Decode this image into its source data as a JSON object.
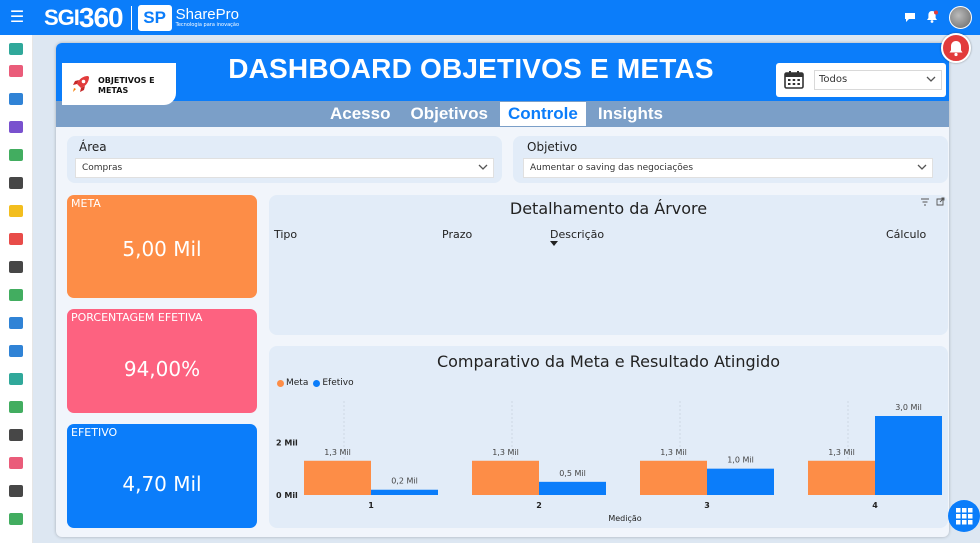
{
  "topbar": {
    "brand_prefix": "SGI",
    "brand_number": "360",
    "partner_mark": "SP",
    "partner_name": "SharePro",
    "partner_tagline": "Tecnologia para inovação",
    "icons": [
      "menu-icon",
      "chat-icon",
      "bell-icon",
      "avatar"
    ]
  },
  "sidebar": {
    "icons": [
      {
        "name": "dashboard-icon",
        "color": "#1a9e8f"
      },
      {
        "name": "calendar-icon",
        "color": "#e84a6b"
      },
      {
        "name": "clipboard-icon",
        "color": "#1976d2"
      },
      {
        "name": "checkbox-icon",
        "color": "#6a3ec9"
      },
      {
        "name": "users-icon",
        "color": "#2ea44f"
      },
      {
        "name": "exchange-icon",
        "color": "#333333"
      },
      {
        "name": "warning-icon",
        "color": "#f2b705"
      },
      {
        "name": "ban-icon",
        "color": "#e53935"
      },
      {
        "name": "document-icon",
        "color": "#333333"
      },
      {
        "name": "eye-icon",
        "color": "#2ea44f"
      },
      {
        "name": "folder-icon",
        "color": "#1976d2"
      },
      {
        "name": "org-chart-icon",
        "color": "#1976d2"
      },
      {
        "name": "industry-icon",
        "color": "#1a9e8f"
      },
      {
        "name": "id-card-icon",
        "color": "#2ea44f"
      },
      {
        "name": "bar-chart-icon",
        "color": "#333333"
      },
      {
        "name": "rocket-icon",
        "color": "#e84a6b"
      },
      {
        "name": "code-icon",
        "color": "#333333"
      },
      {
        "name": "money-icon",
        "color": "#2ea44f"
      }
    ]
  },
  "dashboard": {
    "logo_label_line1": "OBJETIVOS E",
    "logo_label_line2": "METAS",
    "title": "DASHBOARD OBJETIVOS E METAS",
    "date_filter_value": "Todos",
    "tabs": [
      {
        "label": "Acesso",
        "active": false
      },
      {
        "label": "Objetivos",
        "active": false
      },
      {
        "label": "Controle",
        "active": true
      },
      {
        "label": "Insights",
        "active": false
      }
    ],
    "filters": {
      "area_label": "Área",
      "area_value": "Compras",
      "objetivo_label": "Objetivo",
      "objetivo_value": "Aumentar o saving das negociações"
    },
    "kpis": [
      {
        "label": "META",
        "value": "5,00 Mil",
        "color": "#fd8d47"
      },
      {
        "label": "PORCENTAGEM EFETIVA",
        "value": "94,00%",
        "color": "#fd6280"
      },
      {
        "label": "EFETIVO",
        "value": "4,70 Mil",
        "color": "#0b7dfa"
      }
    ],
    "tree": {
      "title": "Detalhamento da Árvore",
      "columns": [
        "Tipo",
        "Prazo",
        "Descrição",
        "Cálculo"
      ]
    }
  },
  "chart_data": {
    "type": "bar",
    "title": "Comparativo da Meta e Resultado Atingido",
    "xlabel": "Medição",
    "ylabel": "",
    "categories": [
      "1",
      "2",
      "3",
      "4"
    ],
    "series": [
      {
        "name": "Meta",
        "color": "#fd8d47",
        "values": [
          1.3,
          1.3,
          1.3,
          1.3
        ],
        "labels": [
          "1,3 Mil",
          "1,3 Mil",
          "1,3 Mil",
          "1,3 Mil"
        ]
      },
      {
        "name": "Efetivo",
        "color": "#0b7dfa",
        "values": [
          0.2,
          0.5,
          1.0,
          3.0
        ],
        "labels": [
          "0,2 Mil",
          "0,5 Mil",
          "1,0 Mil",
          "3,0 Mil"
        ]
      }
    ],
    "y_ticks": [
      {
        "value": 0,
        "label": "0 Mil"
      },
      {
        "value": 2,
        "label": "2 Mil"
      }
    ],
    "ylim": [
      0,
      3.0
    ],
    "legend": "top-left",
    "grid": false
  }
}
